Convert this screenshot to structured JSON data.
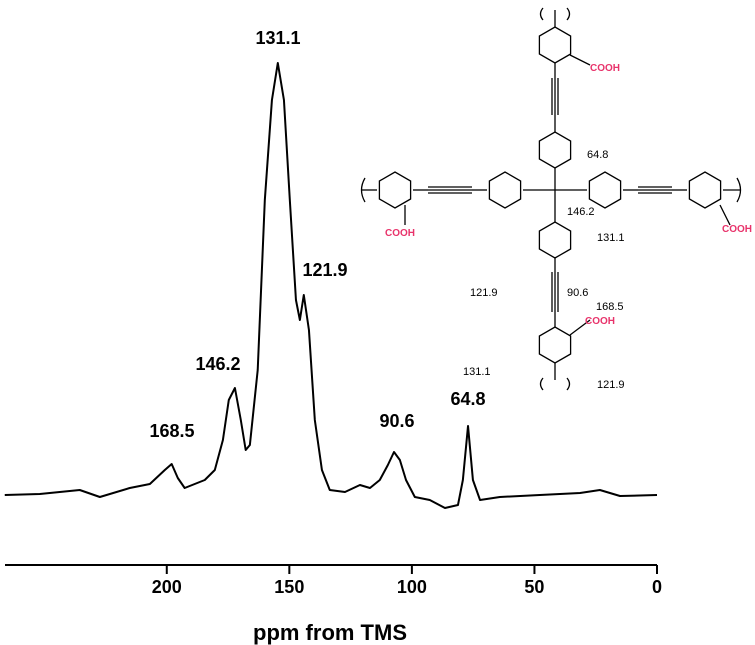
{
  "chart_data": {
    "type": "line",
    "x_label": "ppm from TMS",
    "xlim": [
      266,
      0
    ],
    "ylim": [
      0,
      460
    ],
    "xticks": [
      200,
      150,
      100,
      50,
      0
    ],
    "series": [
      {
        "color": "#000000",
        "x": [
          266.1,
          251.8,
          235.5,
          227.3,
          215.1,
          206.9,
          200.8,
          198.0,
          195.5,
          192.7,
          184.5,
          180.4,
          177.1,
          174.7,
          172.2,
          169.8,
          167.8,
          166.1,
          162.9,
          160.0,
          157.1,
          154.7,
          152.2,
          149.8,
          147.3,
          145.7,
          144.1,
          142.0,
          139.6,
          136.7,
          133.5,
          127.3,
          121.2,
          117.1,
          113.1,
          109.8,
          107.3,
          104.9,
          102.4,
          98.8,
          92.7,
          86.5,
          81.2,
          79.2,
          77.1,
          75.1,
          72.2,
          64.1,
          47.8,
          31.4,
          23.3,
          15.1,
          0
        ],
        "values": [
          15,
          16,
          20,
          13,
          22,
          26,
          40,
          46,
          32,
          22,
          30,
          40,
          70,
          110,
          122,
          90,
          60,
          65,
          140,
          310,
          410,
          447,
          410,
          310,
          210,
          190,
          215,
          180,
          90,
          40,
          20,
          18,
          25,
          22,
          30,
          45,
          58,
          50,
          30,
          13,
          10,
          2,
          5,
          30,
          84,
          30,
          10,
          13,
          15,
          17,
          20,
          14,
          15
        ]
      }
    ],
    "annotations": [
      "168.5",
      "146.2",
      "131.1",
      "121.9",
      "90.6",
      "64.8"
    ]
  },
  "inset": {
    "cooh": [
      "COOH",
      "COOH",
      "COOH",
      "COOH"
    ],
    "shifts": [
      "64.8",
      "146.2",
      "131.1",
      "121.9",
      "90.6",
      "168.5",
      "131.1",
      "121.9"
    ]
  }
}
